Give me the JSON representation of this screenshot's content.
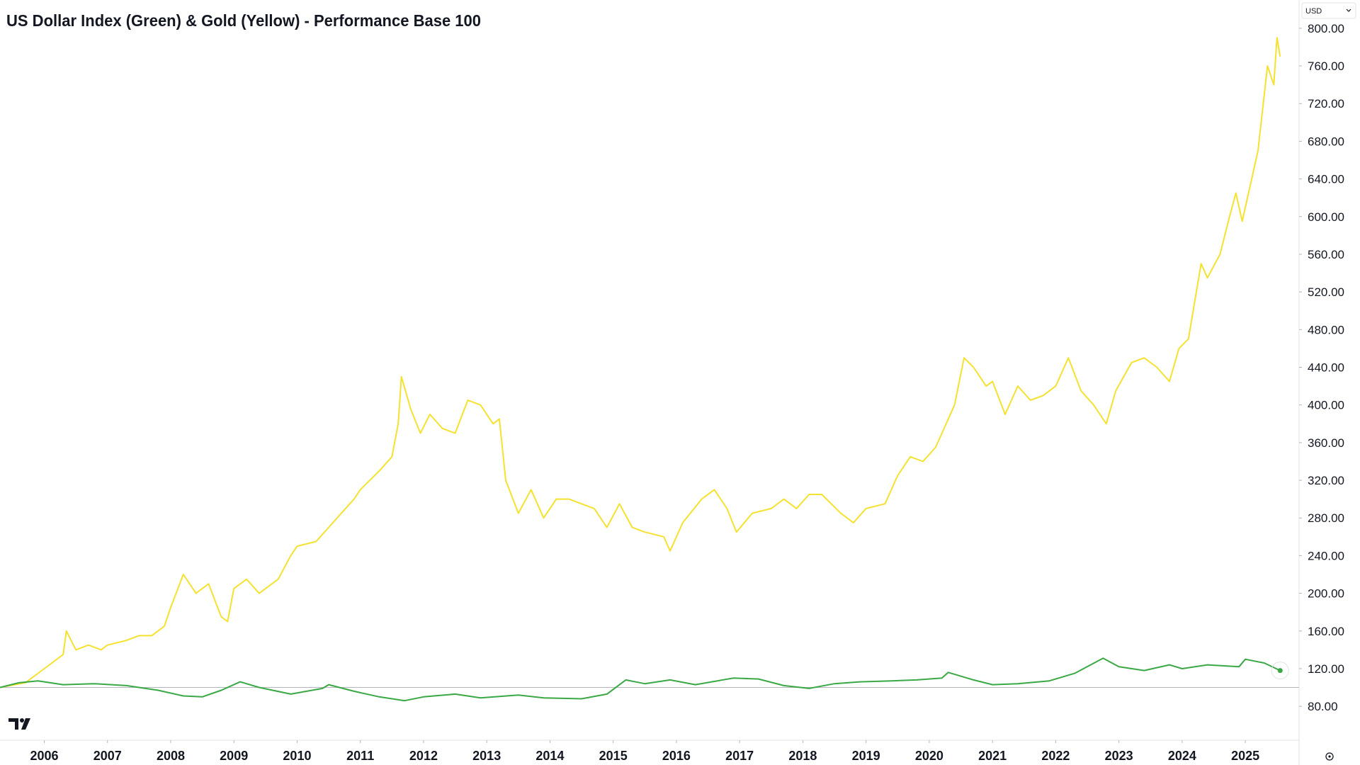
{
  "chart_data": {
    "type": "line",
    "title": "US Dollar Index (Green) & Gold (Yellow) - Performance Base 100",
    "currency": "USD",
    "xlim": [
      2005.3,
      2025.85
    ],
    "xticks": [
      2006,
      2007,
      2008,
      2009,
      2010,
      2011,
      2012,
      2013,
      2014,
      2015,
      2016,
      2017,
      2018,
      2019,
      2020,
      2021,
      2022,
      2023,
      2024,
      2025
    ],
    "ylim": [
      44,
      830
    ],
    "yticks": [
      {
        "value": 80,
        "label": "80.00"
      },
      {
        "value": 120,
        "label": "120.00"
      },
      {
        "value": 160,
        "label": "160.00"
      },
      {
        "value": 200,
        "label": "200.00"
      },
      {
        "value": 240,
        "label": "240.00"
      },
      {
        "value": 280,
        "label": "280.00"
      },
      {
        "value": 320,
        "label": "320.00"
      },
      {
        "value": 360,
        "label": "360.00"
      },
      {
        "value": 400,
        "label": "400.00"
      },
      {
        "value": 440,
        "label": "440.00"
      },
      {
        "value": 480,
        "label": "480.00"
      },
      {
        "value": 520,
        "label": "520.00"
      },
      {
        "value": 560,
        "label": "560.00"
      },
      {
        "value": 600,
        "label": "600.00"
      },
      {
        "value": 640,
        "label": "640.00"
      },
      {
        "value": 680,
        "label": "680.00"
      },
      {
        "value": 720,
        "label": "720.00"
      },
      {
        "value": 760,
        "label": "760.00"
      },
      {
        "value": 800,
        "label": "800.00"
      }
    ],
    "reference_line": 100,
    "series": [
      {
        "name": "Gold",
        "color": "#f5e12f",
        "x": [
          2005.3,
          2005.7,
          2006.0,
          2006.3,
          2006.35,
          2006.5,
          2006.7,
          2006.9,
          2007.0,
          2007.3,
          2007.5,
          2007.7,
          2007.9,
          2008.0,
          2008.2,
          2008.4,
          2008.6,
          2008.8,
          2008.9,
          2009.0,
          2009.2,
          2009.4,
          2009.7,
          2009.9,
          2010.0,
          2010.3,
          2010.5,
          2010.7,
          2010.9,
          2011.0,
          2011.3,
          2011.5,
          2011.6,
          2011.65,
          2011.8,
          2011.95,
          2012.1,
          2012.3,
          2012.5,
          2012.7,
          2012.9,
          2013.1,
          2013.2,
          2013.3,
          2013.5,
          2013.7,
          2013.9,
          2014.1,
          2014.3,
          2014.5,
          2014.7,
          2014.9,
          2015.1,
          2015.3,
          2015.5,
          2015.8,
          2015.9,
          2016.1,
          2016.4,
          2016.6,
          2016.8,
          2016.95,
          2017.2,
          2017.5,
          2017.7,
          2017.9,
          2018.1,
          2018.3,
          2018.6,
          2018.8,
          2019.0,
          2019.3,
          2019.5,
          2019.7,
          2019.9,
          2020.1,
          2020.2,
          2020.4,
          2020.55,
          2020.7,
          2020.9,
          2021.0,
          2021.2,
          2021.4,
          2021.6,
          2021.8,
          2022.0,
          2022.2,
          2022.4,
          2022.6,
          2022.8,
          2022.95,
          2023.2,
          2023.4,
          2023.6,
          2023.8,
          2023.95,
          2024.1,
          2024.2,
          2024.3,
          2024.4,
          2024.6,
          2024.75,
          2024.85,
          2024.95,
          2025.1,
          2025.2,
          2025.3,
          2025.35,
          2025.45,
          2025.5,
          2025.55
        ],
        "values": [
          100,
          105,
          120,
          135,
          160,
          140,
          145,
          140,
          145,
          150,
          155,
          155,
          165,
          185,
          220,
          200,
          210,
          175,
          170,
          205,
          215,
          200,
          215,
          240,
          250,
          255,
          270,
          285,
          300,
          310,
          330,
          345,
          380,
          430,
          395,
          370,
          390,
          375,
          370,
          405,
          400,
          380,
          385,
          320,
          285,
          310,
          280,
          300,
          300,
          295,
          290,
          270,
          295,
          270,
          265,
          260,
          245,
          275,
          300,
          310,
          290,
          265,
          285,
          290,
          300,
          290,
          305,
          305,
          285,
          275,
          290,
          295,
          325,
          345,
          340,
          355,
          370,
          400,
          450,
          440,
          420,
          425,
          390,
          420,
          405,
          410,
          420,
          450,
          415,
          400,
          380,
          415,
          445,
          450,
          440,
          425,
          460,
          470,
          510,
          550,
          535,
          560,
          600,
          625,
          595,
          640,
          670,
          730,
          760,
          740,
          790,
          770
        ]
      },
      {
        "name": "US Dollar Index",
        "color": "#3aa845",
        "x": [
          2005.3,
          2005.6,
          2005.9,
          2006.3,
          2006.8,
          2007.3,
          2007.8,
          2008.2,
          2008.5,
          2008.8,
          2009.1,
          2009.4,
          2009.9,
          2010.4,
          2010.5,
          2010.9,
          2011.3,
          2011.7,
          2012.0,
          2012.5,
          2012.9,
          2013.5,
          2013.9,
          2014.5,
          2014.9,
          2015.2,
          2015.5,
          2015.9,
          2016.3,
          2016.9,
          2017.3,
          2017.7,
          2018.1,
          2018.5,
          2018.9,
          2019.4,
          2019.8,
          2020.2,
          2020.3,
          2020.7,
          2021.0,
          2021.4,
          2021.9,
          2022.3,
          2022.75,
          2023.0,
          2023.4,
          2023.8,
          2024.0,
          2024.4,
          2024.9,
          2025.0,
          2025.3,
          2025.55
        ],
        "values": [
          100,
          105,
          107,
          103,
          104,
          102,
          97,
          91,
          90,
          97,
          106,
          100,
          93,
          99,
          103,
          96,
          90,
          86,
          90,
          93,
          89,
          92,
          89,
          88,
          93,
          108,
          104,
          108,
          103,
          110,
          109,
          102,
          99,
          104,
          106,
          107,
          108,
          110,
          116,
          108,
          103,
          104,
          107,
          115,
          131,
          122,
          118,
          124,
          120,
          124,
          122,
          130,
          126,
          118
        ]
      }
    ]
  }
}
